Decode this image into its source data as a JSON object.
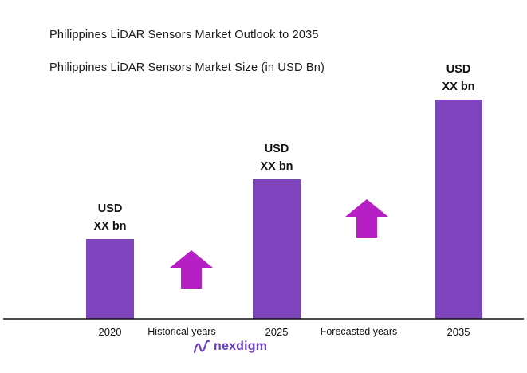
{
  "header": {
    "title": "Philippines LiDAR Sensors Market Outlook to 2035",
    "subtitle": "Philippines LiDAR Sensors Market Size (in USD Bn)"
  },
  "chart_data": {
    "type": "bar",
    "categories": [
      "2020",
      "2025",
      "2035"
    ],
    "values": [
      100,
      175,
      275
    ],
    "value_labels": [
      [
        "USD",
        "XX bn"
      ],
      [
        "USD",
        "XX bn"
      ],
      [
        "USD",
        "XX bn"
      ]
    ],
    "ylim": [
      0,
      300
    ],
    "period_labels": [
      "Historical years",
      "Forecasted years"
    ],
    "grid": false,
    "legend": "none"
  },
  "colors": {
    "bar": "#7d44bd",
    "arrow": "#b51fc4",
    "axis": "#111111"
  },
  "logo": {
    "text": "nexdigm",
    "icon": "nexdigm-logo-icon"
  }
}
